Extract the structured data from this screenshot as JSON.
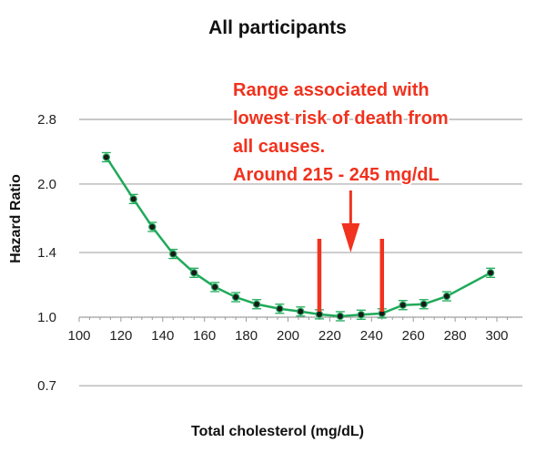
{
  "chart_data": {
    "type": "line",
    "title": "All participants",
    "xlabel": "Total cholesterol (mg/dL)",
    "ylabel": "Hazard Ratio",
    "xlim": [
      100,
      305
    ],
    "x_ticks": [
      100,
      120,
      140,
      160,
      180,
      200,
      220,
      240,
      260,
      280,
      300
    ],
    "y_ticks": [
      0.7,
      1.0,
      1.4,
      2.0,
      2.8
    ],
    "y_scale": "log",
    "grid": "horizontal",
    "series": [
      {
        "x": [
          113,
          126,
          135,
          145,
          155,
          165,
          175,
          185,
          196,
          206,
          215,
          225,
          235,
          245,
          255,
          265,
          276,
          297
        ],
        "y": [
          2.3,
          1.85,
          1.6,
          1.39,
          1.26,
          1.17,
          1.11,
          1.07,
          1.045,
          1.03,
          1.015,
          1.005,
          1.013,
          1.02,
          1.065,
          1.07,
          1.115,
          1.26
        ],
        "color": "#1faa5a",
        "marker_color": "#1a1a1a"
      }
    ],
    "annotations": {
      "lines": [
        "Range associated with",
        "lowest risk of death from",
        "all causes.",
        "Around 215 - 245 mg/dL"
      ],
      "color": "#f0321e",
      "range_x": [
        215,
        245
      ],
      "arrow_x": 230
    }
  }
}
